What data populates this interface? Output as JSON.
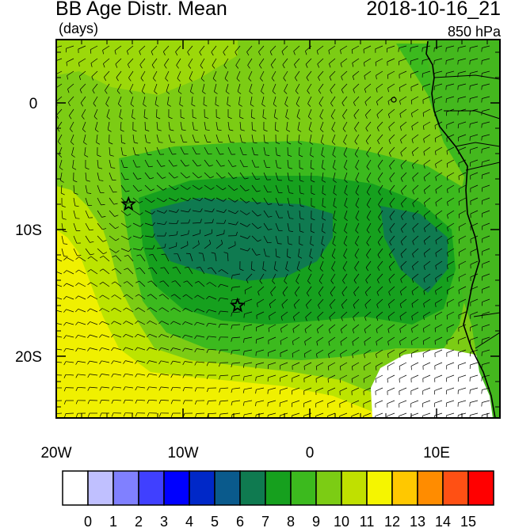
{
  "title": "BB Age Distr. Mean",
  "units": "(days)",
  "datetime": "2018-10-16_21",
  "level": "850 hPa",
  "axes": {
    "y_labels": [
      "0",
      "10S",
      "20S"
    ],
    "x_labels": [
      "20W",
      "10W",
      "0",
      "10E"
    ]
  },
  "colorbar": {
    "labels": [
      "0",
      "1",
      "2",
      "3",
      "4",
      "5",
      "6",
      "7",
      "8",
      "9",
      "10",
      "11",
      "12",
      "13",
      "14",
      "15"
    ],
    "colors": [
      "#ffffff",
      "#c0c0ff",
      "#8080ff",
      "#4040ff",
      "#0000ff",
      "#0028c8",
      "#0a5a8c",
      "#0f7a50",
      "#16a01e",
      "#3cba1e",
      "#7ccc14",
      "#c0e000",
      "#f5f500",
      "#ffc800",
      "#ff8c00",
      "#ff5014",
      "#ff0000"
    ]
  },
  "markers": [
    {
      "name": "star-1",
      "lon": -14.3,
      "lat": -8.0
    },
    {
      "name": "star-2",
      "lon": -5.7,
      "lat": -16.0
    }
  ],
  "palette": {
    "yellow": "#f0f000",
    "yellowgreen": "#bce400",
    "lightgreen": "#7ccc14",
    "green": "#3cba1e",
    "midgreen": "#16a01e",
    "darkgreen": "#0f7a50",
    "land_yellow": "#f0f000"
  }
}
